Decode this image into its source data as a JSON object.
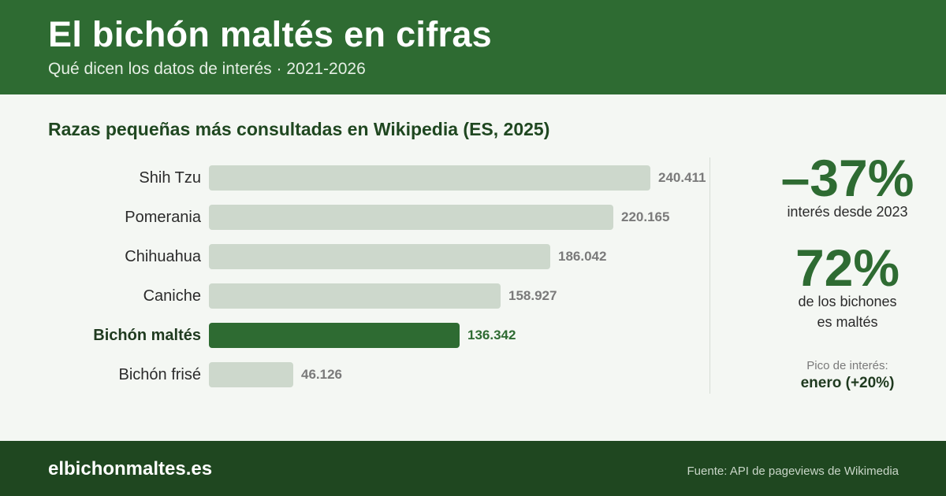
{
  "header": {
    "title": "El bichón maltés en cifras",
    "subtitle": "Qué dicen los datos de interés · 2021-2026"
  },
  "chart_data": {
    "type": "bar",
    "orientation": "horizontal",
    "title": "Razas pequeñas más consultadas en Wikipedia (ES, 2025)",
    "categories": [
      "Shih Tzu",
      "Pomerania",
      "Chihuahua",
      "Caniche",
      "Bichón maltés",
      "Bichón frisé"
    ],
    "values": [
      240411,
      220165,
      186042,
      158927,
      136342,
      46126
    ],
    "value_labels": [
      "240.411",
      "220.165",
      "186.042",
      "158.927",
      "136.342",
      "46.126"
    ],
    "highlight": "Bichón maltés",
    "xlim": [
      0,
      240411
    ],
    "grid": false,
    "colors": {
      "bar": "#cdd8cc",
      "highlight": "#2e6b32"
    }
  },
  "stats": {
    "stat1_value": "–37%",
    "stat1_caption": "interés desde 2023",
    "stat2_value": "72%",
    "stat2_caption_line1": "de los bichones",
    "stat2_caption_line2": "es maltés",
    "peak_label": "Pico de interés:",
    "peak_value": "enero (+20%)"
  },
  "footer": {
    "site": "elbichonmaltes.es",
    "source": "Fuente: API de pageviews de Wikimedia"
  }
}
